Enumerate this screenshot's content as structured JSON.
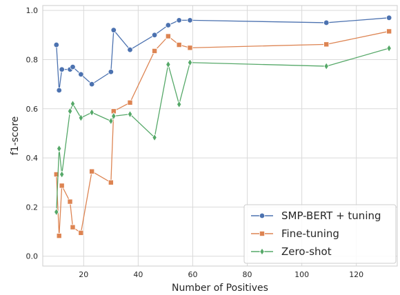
{
  "chart_data": {
    "type": "line",
    "title": "",
    "xlabel": "Number of Positives",
    "ylabel": "f1-score",
    "xlim": [
      5,
      135
    ],
    "ylim": [
      -0.04,
      1.02
    ],
    "xticks": [
      20,
      40,
      60,
      80,
      100,
      120
    ],
    "yticks": [
      0.0,
      0.2,
      0.4,
      0.6,
      0.8,
      1.0
    ],
    "xtick_labels": [
      "20",
      "40",
      "60",
      "80",
      "100",
      "120"
    ],
    "ytick_labels": [
      "0.0",
      "0.2",
      "0.4",
      "0.6",
      "0.8",
      "1.0"
    ],
    "grid": true,
    "legend_position": "lower-right",
    "x": [
      10,
      11,
      12,
      15,
      16,
      19,
      23,
      30,
      31,
      37,
      46,
      51,
      55,
      59,
      109,
      132
    ],
    "series": [
      {
        "name": "SMP-BERT + tuning",
        "color": "#4c72b0",
        "marker": "circle",
        "values": [
          0.86,
          0.675,
          0.76,
          0.76,
          0.77,
          0.74,
          0.7,
          0.75,
          0.92,
          0.84,
          0.9,
          0.94,
          0.96,
          0.96,
          0.95,
          0.97
        ]
      },
      {
        "name": "Fine-tuning",
        "color": "#dd8452",
        "marker": "square",
        "values": [
          0.333,
          0.083,
          0.287,
          0.222,
          0.118,
          0.095,
          0.345,
          0.3,
          0.59,
          0.625,
          0.835,
          0.895,
          0.86,
          0.848,
          0.862,
          0.915
        ]
      },
      {
        "name": "Zero-shot",
        "color": "#55a868",
        "marker": "diamond",
        "values": [
          0.18,
          0.438,
          0.333,
          0.59,
          0.62,
          0.563,
          0.585,
          0.55,
          0.57,
          0.578,
          0.483,
          0.78,
          0.618,
          0.788,
          0.773,
          0.846
        ]
      }
    ]
  }
}
